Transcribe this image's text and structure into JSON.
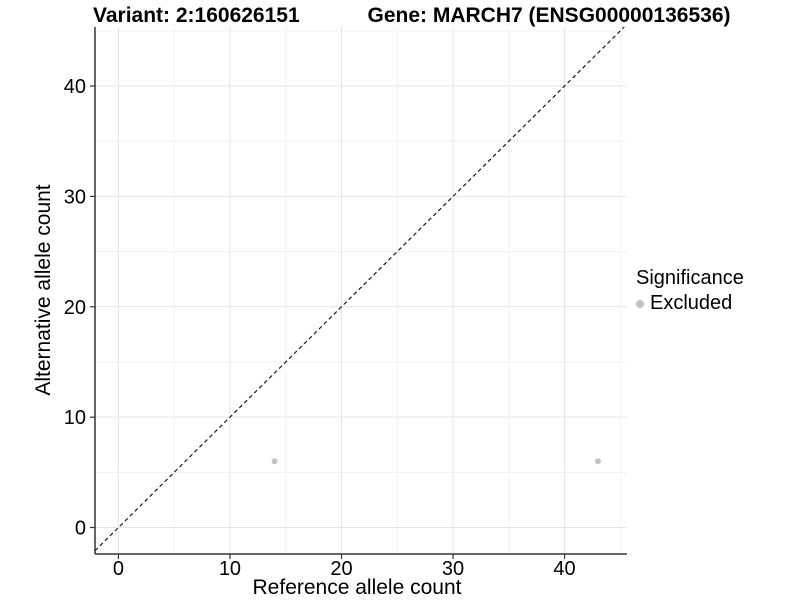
{
  "chart_data": {
    "type": "scatter",
    "title_left": "Variant: 2:160626151",
    "title_right": "Gene: MARCH7 (ENSG00000136536)",
    "xlabel": "Reference allele count",
    "ylabel": "Alternative allele count",
    "xticks": [
      0,
      10,
      20,
      30,
      40
    ],
    "yticks": [
      0,
      10,
      20,
      30,
      40
    ],
    "minor_ticks_x": [
      5,
      15,
      25,
      35,
      45
    ],
    "minor_ticks_y": [
      5,
      15,
      25,
      35,
      45
    ],
    "xlim": [
      -2.1,
      45.6
    ],
    "ylim": [
      -2.4,
      45.35
    ],
    "grid": "on",
    "series": [
      {
        "name": "Excluded",
        "color": "#c2c2c2",
        "points": [
          [
            14,
            6
          ],
          [
            43,
            6
          ]
        ]
      }
    ],
    "reference_line": {
      "kind": "identity y=x",
      "style": "dashed",
      "color": "#1a1a1a"
    },
    "legend": {
      "position": "right",
      "title": "Significance",
      "items": [
        {
          "label": "Excluded",
          "color": "#c2c2c2"
        }
      ]
    }
  },
  "colors": {
    "background": "#ffffff",
    "grid_major": "#e4e4e4",
    "grid_minor": "#f1f1f1",
    "axis_line": "#333333",
    "text": "#000000",
    "point": "#c2c2c2",
    "reference_line": "#1a1a1a"
  }
}
